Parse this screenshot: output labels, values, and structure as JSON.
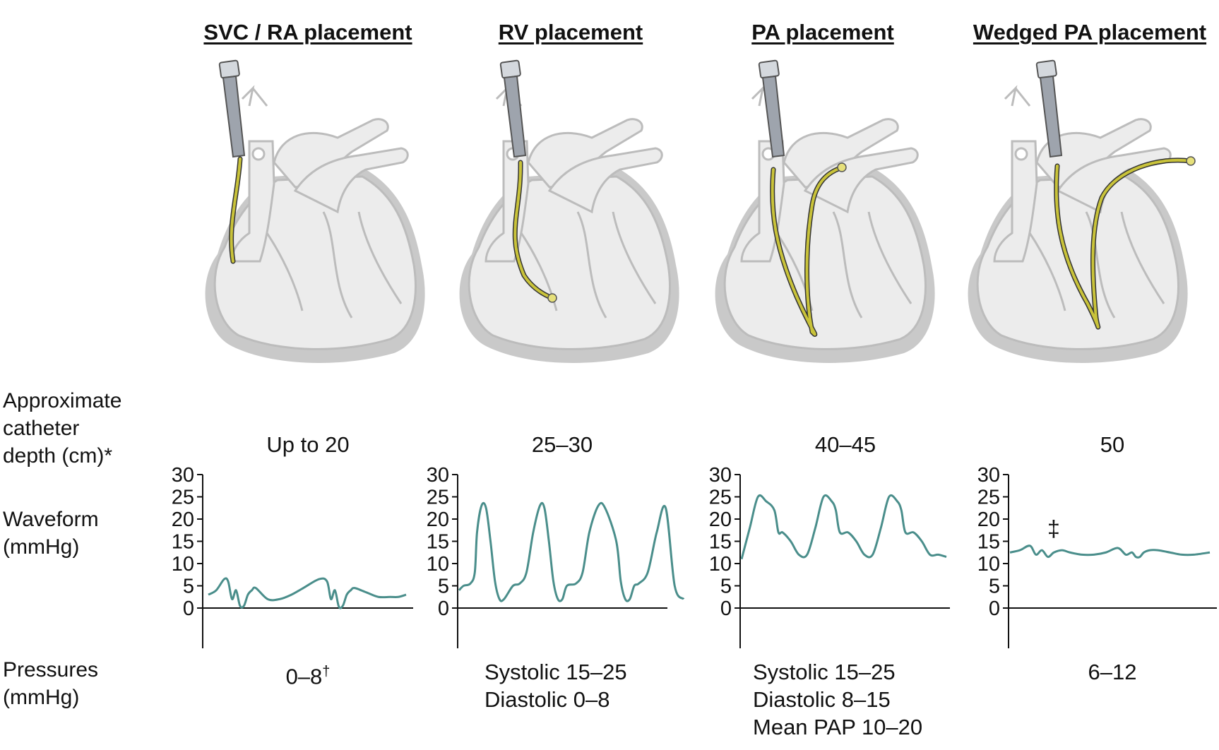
{
  "row_labels": {
    "depth": [
      "Approximate",
      "catheter",
      "depth (cm)*"
    ],
    "waveform": [
      "Waveform",
      "(mmHg)"
    ],
    "pressures": [
      "Pressures",
      "(mmHg)"
    ]
  },
  "panels": [
    {
      "title": "SVC / RA placement",
      "depth": "Up to 20",
      "pressure_lines": [
        "0–8"
      ],
      "pressure_sup": "†",
      "waveform_mark": ""
    },
    {
      "title": "RV placement",
      "depth": "25–30",
      "pressure_lines": [
        "Systolic 15–25",
        "Diastolic 0–8"
      ],
      "pressure_sup": "",
      "waveform_mark": ""
    },
    {
      "title": "PA placement",
      "depth": "40–45",
      "pressure_lines": [
        "Systolic 15–25",
        "Diastolic 8–15",
        "Mean PAP 10–20"
      ],
      "pressure_sup": "",
      "waveform_mark": ""
    },
    {
      "title": "Wedged PA placement",
      "depth": "50",
      "pressure_lines": [
        "6–12"
      ],
      "pressure_sup": "",
      "waveform_mark": "‡"
    }
  ],
  "colors": {
    "waveform_line": "#4a8e8b",
    "heart_fill": "#ececec",
    "heart_shadow": "#c9c9c9",
    "heart_outline": "#bcbcbc",
    "catheter": "#c9c33a",
    "sheath": "#9ea4ad"
  },
  "chart_data": {
    "type": "line",
    "y_ticks": [
      0,
      5,
      10,
      15,
      20,
      25,
      30
    ],
    "ylim": [
      -9,
      30
    ],
    "series": [
      {
        "panel": "SVC / RA placement",
        "x": [
          0,
          0.04,
          0.08,
          0.1,
          0.12,
          0.14,
          0.16,
          0.18,
          0.2,
          0.22,
          0.24,
          0.3,
          0.36,
          0.42,
          0.48,
          0.56,
          0.6,
          0.62,
          0.64,
          0.66,
          0.68,
          0.7,
          0.72,
          0.74,
          0.8,
          0.86,
          0.92,
          0.96,
          1
        ],
        "y": [
          3,
          4,
          6.5,
          6,
          2,
          4,
          0.5,
          0.5,
          3,
          4,
          4.5,
          2,
          2,
          3,
          4.5,
          6.5,
          6,
          2,
          4,
          0.3,
          0.5,
          3,
          4,
          4.5,
          3.5,
          2.5,
          2.5,
          2.5,
          3
        ]
      },
      {
        "panel": "RV placement",
        "x": [
          0,
          0.02,
          0.05,
          0.07,
          0.08,
          0.1,
          0.12,
          0.14,
          0.16,
          0.18,
          0.2,
          0.24,
          0.27,
          0.3,
          0.33,
          0.36,
          0.38,
          0.4,
          0.42,
          0.44,
          0.46,
          0.48,
          0.52,
          0.55,
          0.58,
          0.62,
          0.65,
          0.7,
          0.72,
          0.74,
          0.76,
          0.78,
          0.8,
          0.84,
          0.88,
          0.92,
          0.96,
          1
        ],
        "y": [
          4,
          5,
          5.5,
          8,
          17,
          23,
          22.5,
          15,
          6,
          2,
          2,
          5,
          5.5,
          8,
          17,
          23,
          22.5,
          15,
          6,
          2,
          2,
          5,
          5.5,
          8,
          17,
          23,
          22.5,
          15,
          6,
          2,
          2,
          5,
          5.5,
          8,
          17,
          22.5,
          5,
          2
        ]
      },
      {
        "panel": "PA placement",
        "x": [
          0,
          0.04,
          0.08,
          0.12,
          0.16,
          0.18,
          0.2,
          0.24,
          0.28,
          0.32,
          0.36,
          0.4,
          0.44,
          0.46,
          0.48,
          0.52,
          0.56,
          0.6,
          0.64,
          0.68,
          0.72,
          0.76,
          0.78,
          0.8,
          0.84,
          0.88,
          0.92,
          0.96,
          1
        ],
        "y": [
          11,
          18,
          25,
          24,
          22,
          17,
          17,
          15,
          12,
          12,
          18,
          25,
          24,
          22,
          17,
          17,
          15,
          12,
          12,
          18,
          25,
          24,
          22,
          17,
          17,
          15,
          12,
          12,
          11.5
        ]
      },
      {
        "panel": "Wedged PA placement",
        "x": [
          0,
          0.05,
          0.1,
          0.13,
          0.16,
          0.19,
          0.22,
          0.26,
          0.3,
          0.36,
          0.42,
          0.48,
          0.54,
          0.58,
          0.61,
          0.63,
          0.65,
          0.67,
          0.7,
          0.74,
          0.8,
          0.86,
          0.92,
          1
        ],
        "y": [
          12.5,
          13,
          14,
          12,
          13,
          11.5,
          12.5,
          13,
          12.5,
          12,
          12,
          12.5,
          13.5,
          12,
          12.5,
          11.5,
          11.5,
          12.5,
          13,
          13,
          12.5,
          12,
          12,
          12.5
        ]
      }
    ]
  }
}
